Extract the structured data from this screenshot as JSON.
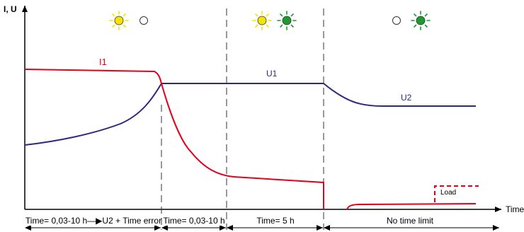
{
  "axes": {
    "y_label": "I, U",
    "x_label": "Time"
  },
  "curves": {
    "current_label": "I1",
    "u1_label": "U1",
    "u2_label": "U2",
    "load_label": "Load"
  },
  "phases": [
    {
      "label": "Time= 0,03-10 h—▶U2 + Time error",
      "lamp_left": "yellow-on",
      "lamp_right": "off"
    },
    {
      "label": "Time= 0,03-10 h",
      "lamp_left": "",
      "lamp_right": ""
    },
    {
      "label": "Time= 5 h",
      "lamp_left": "yellow-on",
      "lamp_right": "green-on"
    },
    {
      "label": "No time limit",
      "lamp_left": "off",
      "lamp_right": "green-on"
    }
  ],
  "colors": {
    "current": "#e3001b",
    "voltage": "#2b2a7c",
    "axis": "#000000",
    "yellow": "#f4e400",
    "green": "#1e9a2e"
  }
}
